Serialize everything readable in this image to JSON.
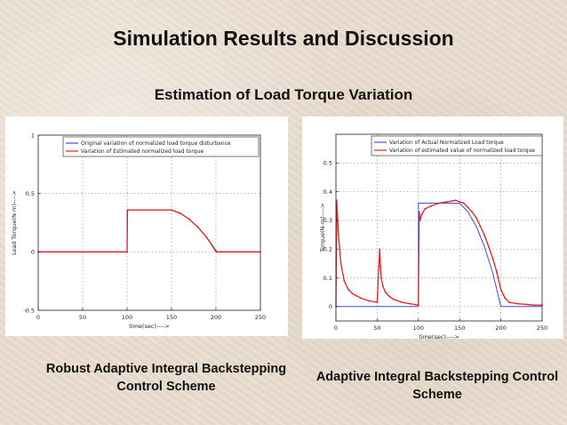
{
  "slide": {
    "title": "Simulation Results and Discussion",
    "subtitle": "Estimation of Load Torque Variation",
    "caption_left": "Robust Adaptive Integral Backstepping Control Scheme",
    "caption_right": "Adaptive Integral Backstepping Control Scheme"
  },
  "chart_data": [
    {
      "type": "line",
      "xlabel": "time(sec)---->",
      "ylabel": "Load Torque(N-m)---->",
      "xlim": [
        0,
        250
      ],
      "ylim": [
        -0.5,
        1
      ],
      "xticks": [
        0,
        50,
        100,
        150,
        200,
        250
      ],
      "yticks": [
        -0.5,
        0,
        0.5,
        1
      ],
      "xtick_labels": [
        "0",
        "50",
        "100",
        "150",
        "200",
        "250"
      ],
      "ytick_labels": [
        "-0.5",
        "0",
        "0.5",
        "1"
      ],
      "grid": true,
      "legend": "top-right",
      "series": [
        {
          "name": "Original variation of normalized load torque disturbance",
          "color": "#3b4fe0",
          "x": [
            0,
            100,
            100,
            150,
            160,
            170,
            180,
            190,
            200,
            250
          ],
          "y": [
            0,
            0,
            0.36,
            0.36,
            0.33,
            0.28,
            0.21,
            0.12,
            0.0,
            0.0
          ]
        },
        {
          "name": "Variation of Estimated normalized load torque",
          "color": "#e02020",
          "x": [
            0,
            100,
            100.5,
            150,
            160,
            170,
            180,
            190,
            200,
            201,
            250
          ],
          "y": [
            0,
            0,
            0.36,
            0.36,
            0.33,
            0.28,
            0.21,
            0.12,
            0.01,
            0.0,
            0.0
          ]
        }
      ]
    },
    {
      "type": "line",
      "xlabel": "time(sec)---->",
      "ylabel": "Torque(N-m)---->",
      "xlim": [
        0,
        250
      ],
      "ylim": [
        -0.05,
        0.6
      ],
      "xticks": [
        0,
        50,
        100,
        150,
        200,
        250
      ],
      "yticks": [
        0,
        0.1,
        0.2,
        0.3,
        0.4,
        0.5
      ],
      "xtick_labels": [
        "0",
        "50",
        "100",
        "150",
        "200",
        "250"
      ],
      "ytick_labels": [
        "0",
        "0.1",
        "0.2",
        "0.3",
        "0.4",
        "0.5"
      ],
      "grid": true,
      "legend": "top-right",
      "series": [
        {
          "name": "Variation of Actual Normalized Load torque",
          "color": "#3b4fe0",
          "x": [
            0,
            100,
            100,
            150,
            160,
            170,
            180,
            190,
            200,
            250
          ],
          "y": [
            0,
            0,
            0.36,
            0.36,
            0.33,
            0.28,
            0.21,
            0.12,
            0.0,
            0.0
          ]
        },
        {
          "name": "Variation of estimated value of normalized load torque",
          "color": "#e02020",
          "x": [
            0,
            1,
            3,
            6,
            10,
            15,
            20,
            30,
            40,
            50,
            53,
            54,
            55,
            57,
            60,
            65,
            70,
            80,
            90,
            100,
            101,
            102,
            104,
            108,
            115,
            125,
            135,
            145,
            150,
            155,
            160,
            165,
            170,
            175,
            180,
            185,
            190,
            195,
            200,
            205,
            210,
            220,
            230,
            240,
            250
          ],
          "y": [
            0,
            0.37,
            0.25,
            0.15,
            0.09,
            0.06,
            0.045,
            0.03,
            0.02,
            0.015,
            0.2,
            0.14,
            0.1,
            0.07,
            0.05,
            0.035,
            0.025,
            0.015,
            0.01,
            0.005,
            0.33,
            0.3,
            0.32,
            0.34,
            0.35,
            0.36,
            0.365,
            0.37,
            0.365,
            0.36,
            0.345,
            0.33,
            0.31,
            0.28,
            0.25,
            0.21,
            0.17,
            0.12,
            0.06,
            0.03,
            0.015,
            0.01,
            0.008,
            0.005,
            0.005
          ]
        }
      ]
    }
  ]
}
